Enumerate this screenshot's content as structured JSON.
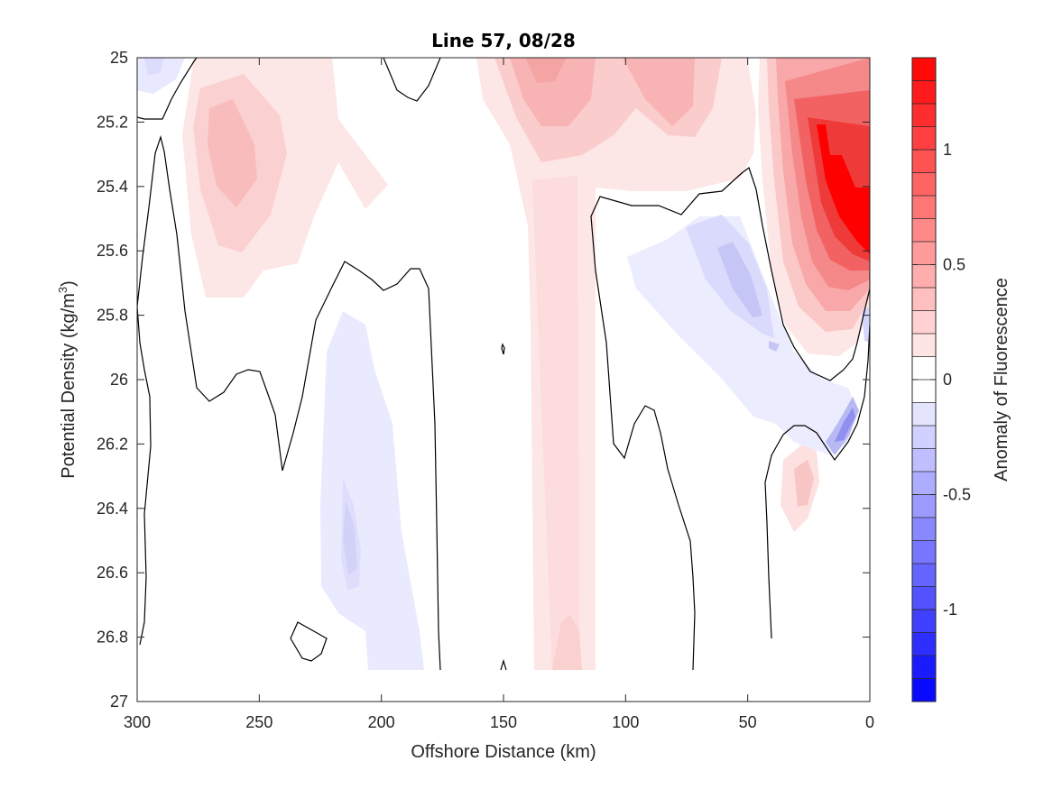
{
  "chart_data": {
    "type": "contour",
    "title": "Line 57, 08/28",
    "xlabel": "Offshore Distance (km)",
    "ylabel": "Potential Density (kg/m",
    "ylabel_sup": "3",
    "ylabel_end": ")",
    "x_reversed": true,
    "y_reversed": true,
    "xlim": [
      300,
      0
    ],
    "ylim": [
      25,
      27
    ],
    "x_ticks": [
      300,
      250,
      200,
      150,
      100,
      50,
      0
    ],
    "x_tick_labels": [
      "300",
      "250",
      "200",
      "150",
      "100",
      "50",
      "0"
    ],
    "y_ticks": [
      25,
      25.2,
      25.4,
      25.6,
      25.8,
      26,
      26.2,
      26.4,
      26.6,
      26.8,
      27
    ],
    "y_tick_labels": [
      "25",
      "25.2",
      "25.4",
      "25.6",
      "25.8",
      "26",
      "26.2",
      "26.4",
      "26.6",
      "26.8",
      "27"
    ],
    "colorbar": {
      "label": "Anomaly of Fluorescence",
      "range": [
        -1.4,
        1.4
      ],
      "ticks": [
        1,
        0.5,
        0,
        -0.5,
        -1
      ],
      "tick_labels": [
        "1",
        "0.5",
        "0",
        "-0.5",
        "-1"
      ],
      "levels": 28,
      "colormap": "blue-white-red",
      "high_color": "#ff0000",
      "low_color": "#0000ff"
    },
    "zero_contour_color": "#000000"
  }
}
